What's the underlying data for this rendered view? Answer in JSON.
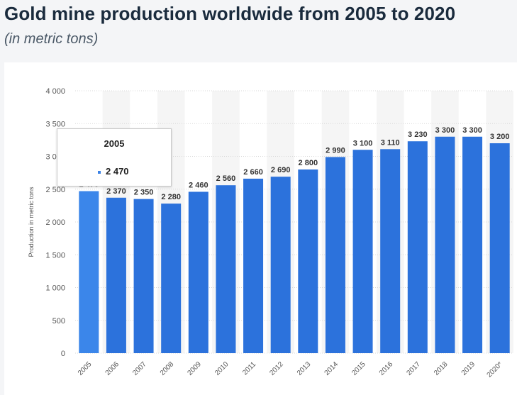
{
  "title": "Gold mine production worldwide from 2005 to 2020",
  "subtitle": "(in metric tons)",
  "chart_data": {
    "type": "bar",
    "title": "Gold mine production worldwide from 2005 to 2020",
    "subtitle": "(in metric tons)",
    "xlabel": "",
    "ylabel": "Production in metric tons",
    "categories": [
      "2005",
      "2006",
      "2007",
      "2008",
      "2009",
      "2010",
      "2011",
      "2012",
      "2013",
      "2014",
      "2015",
      "2016",
      "2017",
      "2018",
      "2019",
      "2020*"
    ],
    "values": [
      2470,
      2370,
      2350,
      2280,
      2460,
      2560,
      2660,
      2690,
      2800,
      2990,
      3100,
      3110,
      3230,
      3300,
      3300,
      3200
    ],
    "value_labels": [
      "2 470",
      "2 370",
      "2 350",
      "2 280",
      "2 460",
      "2 560",
      "2 660",
      "2 690",
      "2 800",
      "2 990",
      "3 100",
      "3 110",
      "3 230",
      "3 300",
      "3 300",
      "3 200"
    ],
    "yticks": [
      0,
      500,
      1000,
      1500,
      2000,
      2500,
      3000,
      3500,
      4000
    ],
    "ytick_labels": [
      "0",
      "500",
      "1 000",
      "1 500",
      "2 000",
      "2 500",
      "3 000",
      "3 500",
      "4 000"
    ],
    "ylim": [
      0,
      4000
    ],
    "grid": true,
    "legend": "none",
    "colors": {
      "bar": "#2c72dc",
      "bar_highlight": "#3b86ea",
      "label": "#333333",
      "grid": "#d8d8d8",
      "band": "#f5f5f5"
    }
  },
  "tooltip": {
    "title": "2005",
    "value": "2 470"
  }
}
